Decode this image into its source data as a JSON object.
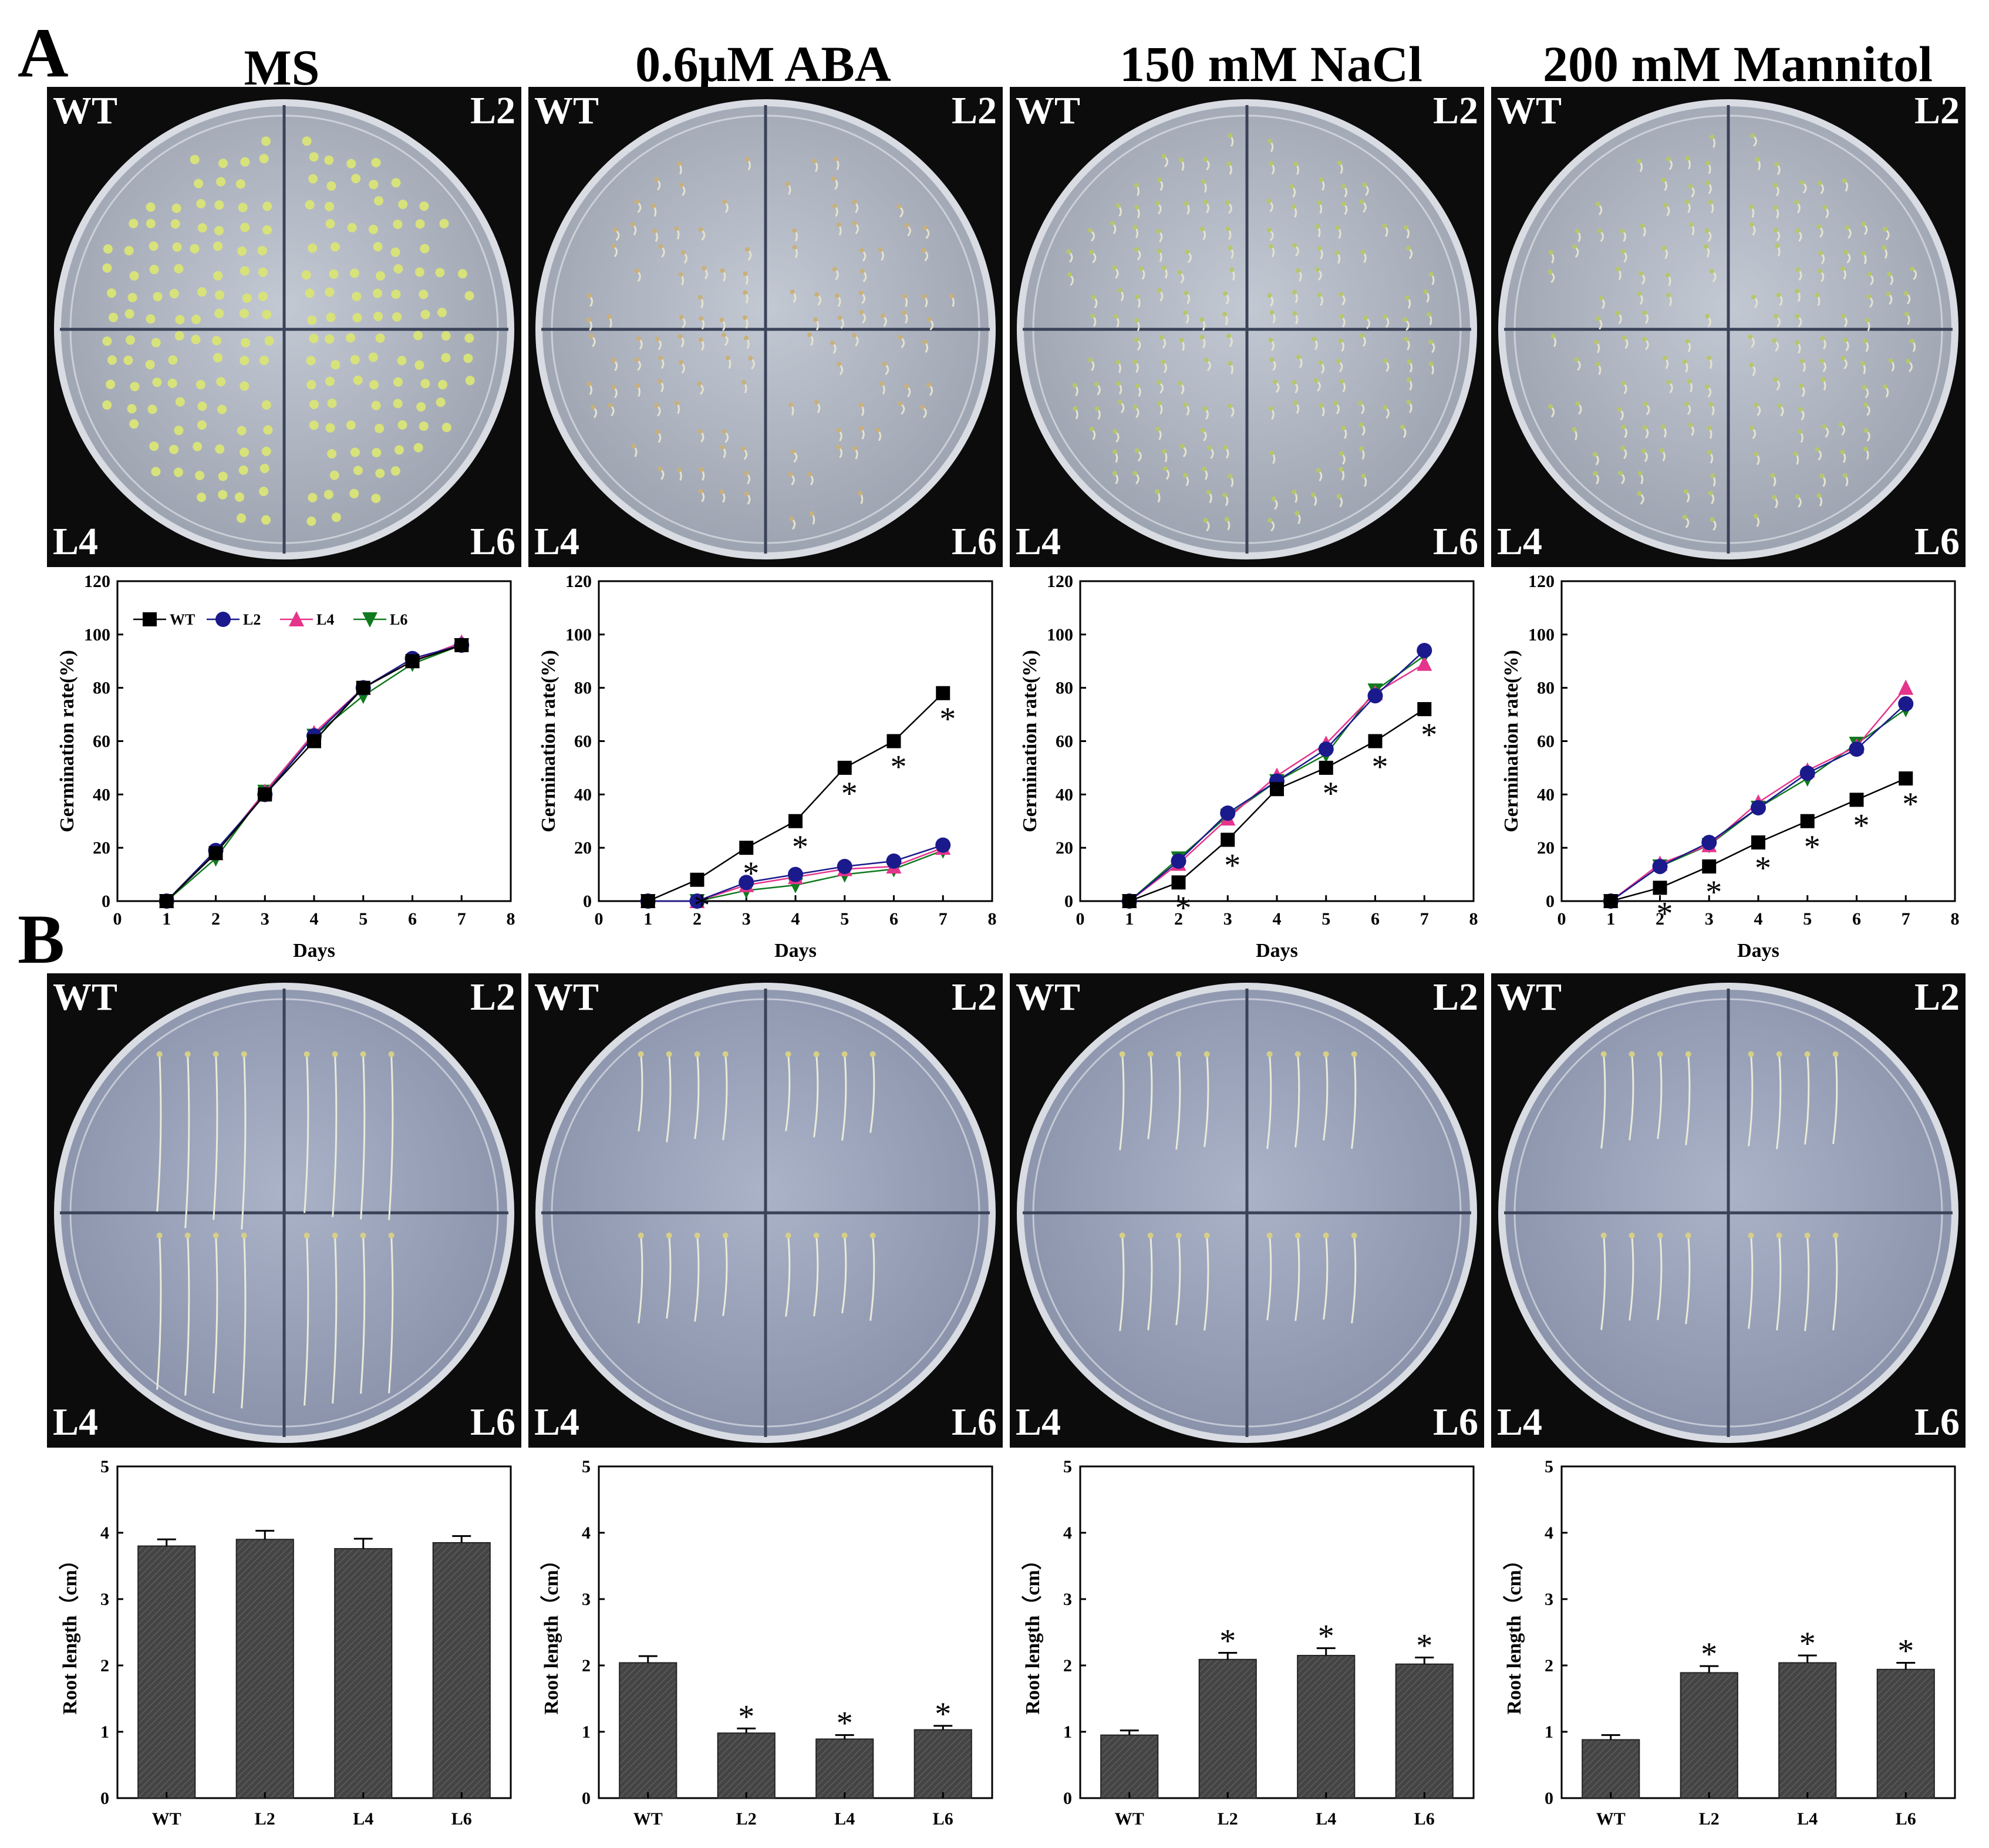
{
  "panels": {
    "a": "A",
    "b": "B"
  },
  "conditions": [
    "MS",
    "0.6μM ABA",
    "150 mM NaCl",
    "200 mM Mannitol"
  ],
  "plate_labels": {
    "tl": "WT",
    "tr": "L2",
    "bl": "L4",
    "br": "L6"
  },
  "colors": {
    "WT": "#000000",
    "L2": "#1a1a8c",
    "L4": "#e5348c",
    "L6": "#0f7a1e",
    "bar": "#444444",
    "photo_bg": "#0c0c0c",
    "plate_a": "#b9bfcc",
    "plate_b": "#a5adc3",
    "seedling": "#d8e27a"
  },
  "chart_data": [
    {
      "type": "line",
      "condition": "MS",
      "xlabel": "Days",
      "ylabel": "Germination rate(%)",
      "xlim": [
        0,
        8
      ],
      "ylim": [
        0,
        120
      ],
      "xticks": [
        0,
        1,
        2,
        3,
        4,
        5,
        6,
        7,
        8
      ],
      "yticks": [
        0,
        20,
        40,
        60,
        80,
        100,
        120
      ],
      "legend": "top-left",
      "x": [
        1,
        2,
        3,
        4,
        5,
        6,
        7
      ],
      "series": [
        {
          "name": "WT",
          "marker": "square",
          "values": [
            0,
            18,
            40,
            60,
            80,
            90,
            96
          ]
        },
        {
          "name": "L2",
          "marker": "circle",
          "values": [
            0,
            19,
            40,
            62,
            80,
            91,
            96
          ]
        },
        {
          "name": "L4",
          "marker": "triangle-up",
          "values": [
            0,
            18,
            41,
            63,
            80,
            90,
            97
          ]
        },
        {
          "name": "L6",
          "marker": "triangle-down",
          "values": [
            0,
            16,
            41,
            62,
            77,
            89,
            96
          ]
        }
      ],
      "significance": []
    },
    {
      "type": "line",
      "condition": "0.6μM ABA",
      "xlabel": "Days",
      "ylabel": "Germination rate(%)",
      "xlim": [
        0,
        8
      ],
      "ylim": [
        0,
        120
      ],
      "xticks": [
        0,
        1,
        2,
        3,
        4,
        5,
        6,
        7,
        8
      ],
      "yticks": [
        0,
        20,
        40,
        60,
        80,
        100,
        120
      ],
      "x": [
        1,
        2,
        3,
        4,
        5,
        6,
        7
      ],
      "series": [
        {
          "name": "WT",
          "marker": "square",
          "values": [
            0,
            8,
            20,
            30,
            50,
            60,
            78
          ]
        },
        {
          "name": "L2",
          "marker": "circle",
          "values": [
            0,
            0,
            7,
            10,
            13,
            15,
            21
          ]
        },
        {
          "name": "L4",
          "marker": "triangle-up",
          "values": [
            0,
            0,
            6,
            9,
            12,
            13,
            20
          ]
        },
        {
          "name": "L6",
          "marker": "triangle-down",
          "values": [
            0,
            0,
            4,
            6,
            10,
            12,
            19
          ]
        }
      ],
      "significance": [
        {
          "x": 2,
          "y": 8
        },
        {
          "x": 3,
          "y": 20
        },
        {
          "x": 4,
          "y": 30
        },
        {
          "x": 5,
          "y": 50
        },
        {
          "x": 6,
          "y": 60
        },
        {
          "x": 7,
          "y": 78
        }
      ]
    },
    {
      "type": "line",
      "condition": "150 mM NaCl",
      "xlabel": "Days",
      "ylabel": "Germination rate(%)",
      "xlim": [
        0,
        8
      ],
      "ylim": [
        0,
        120
      ],
      "xticks": [
        0,
        1,
        2,
        3,
        4,
        5,
        6,
        7,
        8
      ],
      "yticks": [
        0,
        20,
        40,
        60,
        80,
        100,
        120
      ],
      "x": [
        1,
        2,
        3,
        4,
        5,
        6,
        7
      ],
      "series": [
        {
          "name": "WT",
          "marker": "square",
          "values": [
            0,
            7,
            23,
            42,
            50,
            60,
            72
          ]
        },
        {
          "name": "L2",
          "marker": "circle",
          "values": [
            0,
            15,
            33,
            45,
            57,
            77,
            94
          ]
        },
        {
          "name": "L4",
          "marker": "triangle-up",
          "values": [
            0,
            14,
            31,
            47,
            59,
            78,
            89
          ]
        },
        {
          "name": "L6",
          "marker": "triangle-down",
          "values": [
            0,
            16,
            32,
            45,
            55,
            79,
            92
          ]
        }
      ],
      "significance": [
        {
          "x": 2,
          "y": 7
        },
        {
          "x": 3,
          "y": 23
        },
        {
          "x": 5,
          "y": 50
        },
        {
          "x": 6,
          "y": 60
        },
        {
          "x": 7,
          "y": 72
        }
      ]
    },
    {
      "type": "line",
      "condition": "200 mM Mannitol",
      "xlabel": "Days",
      "ylabel": "Germination rate(%)",
      "xlim": [
        0,
        8
      ],
      "ylim": [
        0,
        120
      ],
      "xticks": [
        0,
        1,
        2,
        3,
        4,
        5,
        6,
        7,
        8
      ],
      "yticks": [
        0,
        20,
        40,
        60,
        80,
        100,
        120
      ],
      "x": [
        1,
        2,
        3,
        4,
        5,
        6,
        7
      ],
      "series": [
        {
          "name": "WT",
          "marker": "square",
          "values": [
            0,
            5,
            13,
            22,
            30,
            38,
            46
          ]
        },
        {
          "name": "L2",
          "marker": "circle",
          "values": [
            0,
            13,
            22,
            35,
            48,
            57,
            74
          ]
        },
        {
          "name": "L4",
          "marker": "triangle-up",
          "values": [
            0,
            14,
            21,
            37,
            49,
            58,
            80
          ]
        },
        {
          "name": "L6",
          "marker": "triangle-down",
          "values": [
            0,
            13,
            21,
            35,
            46,
            59,
            72
          ]
        }
      ],
      "significance": [
        {
          "x": 2,
          "y": 5
        },
        {
          "x": 3,
          "y": 13
        },
        {
          "x": 4,
          "y": 22
        },
        {
          "x": 5,
          "y": 30
        },
        {
          "x": 6,
          "y": 38
        },
        {
          "x": 7,
          "y": 46
        }
      ]
    },
    {
      "type": "bar",
      "condition": "MS",
      "ylabel": "Root length（cm）",
      "ylim": [
        0,
        5
      ],
      "yticks": [
        0,
        1,
        2,
        3,
        4,
        5
      ],
      "categories": [
        "WT",
        "L2",
        "L4",
        "L6"
      ],
      "values": [
        3.8,
        3.9,
        3.76,
        3.85
      ],
      "errors": [
        0.1,
        0.13,
        0.15,
        0.1
      ],
      "significant": [
        false,
        false,
        false,
        false
      ]
    },
    {
      "type": "bar",
      "condition": "0.6μM ABA",
      "ylabel": "Root length（cm）",
      "ylim": [
        0,
        5
      ],
      "yticks": [
        0,
        1,
        2,
        3,
        4,
        5
      ],
      "categories": [
        "WT",
        "L2",
        "L4",
        "L6"
      ],
      "values": [
        2.04,
        0.98,
        0.89,
        1.03
      ],
      "errors": [
        0.1,
        0.07,
        0.06,
        0.06
      ],
      "significant": [
        false,
        true,
        true,
        true
      ]
    },
    {
      "type": "bar",
      "condition": "150 mM NaCl",
      "ylabel": "Root length（cm）",
      "ylim": [
        0,
        5
      ],
      "yticks": [
        0,
        1,
        2,
        3,
        4,
        5
      ],
      "categories": [
        "WT",
        "L2",
        "L4",
        "L6"
      ],
      "values": [
        0.95,
        2.09,
        2.15,
        2.02
      ],
      "errors": [
        0.07,
        0.1,
        0.11,
        0.1
      ],
      "significant": [
        false,
        true,
        true,
        true
      ]
    },
    {
      "type": "bar",
      "condition": "200 mM Mannitol",
      "ylabel": "Root length（cm）",
      "ylim": [
        0,
        5
      ],
      "yticks": [
        0,
        1,
        2,
        3,
        4,
        5
      ],
      "categories": [
        "WT",
        "L2",
        "L4",
        "L6"
      ],
      "values": [
        0.88,
        1.89,
        2.04,
        1.94
      ],
      "errors": [
        0.07,
        0.1,
        0.11,
        0.1
      ],
      "significant": [
        false,
        true,
        true,
        true
      ]
    }
  ],
  "sig_mark": "*"
}
